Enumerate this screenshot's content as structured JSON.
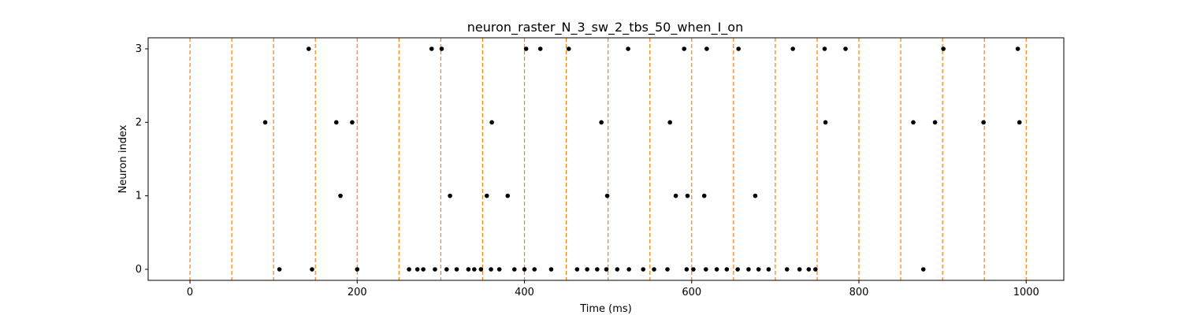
{
  "chart_data": {
    "type": "scatter",
    "title": "neuron_raster_N_3_sw_2_tbs_50_when_I_on",
    "xlabel": "Time (ms)",
    "ylabel": "Neuron index",
    "xlim": [
      -50,
      1045
    ],
    "ylim": [
      -0.15,
      3.15
    ],
    "xticks": [
      0,
      200,
      400,
      600,
      800,
      1000
    ],
    "yticks": [
      0,
      1,
      2,
      3
    ],
    "grid": false,
    "marker_color": "#000000",
    "boundary_line_color": "#ff7f0e",
    "boundary_lines": [
      0,
      50,
      100,
      150,
      200,
      250,
      300,
      350,
      400,
      450,
      500,
      550,
      600,
      650,
      700,
      750,
      800,
      850,
      900,
      950,
      1000
    ],
    "series": [
      {
        "neuron": 0,
        "x": [
          107,
          146,
          200,
          262,
          272,
          279,
          293,
          307,
          319,
          333,
          340,
          348,
          360,
          370,
          388,
          400,
          412,
          432,
          463,
          475,
          487,
          498,
          511,
          525,
          542,
          555,
          571,
          594,
          602,
          617,
          630,
          642,
          655,
          668,
          680,
          692,
          714,
          729,
          740,
          748,
          877
        ]
      },
      {
        "neuron": 1,
        "x": [
          180,
          311,
          355,
          380,
          499,
          581,
          595,
          615,
          676
        ]
      },
      {
        "neuron": 2,
        "x": [
          90,
          175,
          194,
          361,
          492,
          574,
          760,
          865,
          891,
          949,
          992
        ]
      },
      {
        "neuron": 3,
        "x": [
          142,
          289,
          301,
          402,
          419,
          453,
          524,
          591,
          618,
          656,
          721,
          759,
          784,
          901,
          990
        ]
      }
    ]
  }
}
